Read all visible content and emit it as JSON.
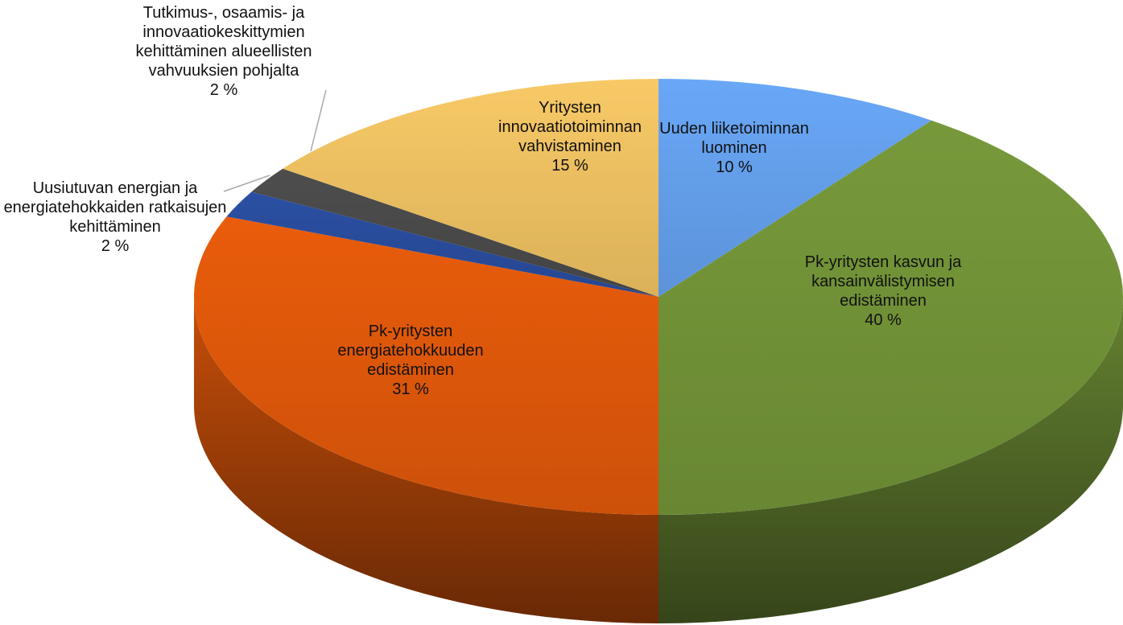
{
  "chart_data": {
    "type": "pie",
    "categories": [
      "Uuden liiketoiminnan luominen",
      "Pk-yritysten kasvun ja kansainvälistymisen edistäminen",
      "Pk-yritysten energiatehokkuuden edistäminen",
      "Uusiutuvan energian ja energiatehokkaiden ratkaisujen kehittäminen",
      "Tutkimus-, osaamis- ja innovaatiokeskittymien kehittäminen alueellisten vahvuuksien pohjalta",
      "Yritysten innovaatiotoiminnan vahvistaminen"
    ],
    "values": [
      10,
      40,
      31,
      2,
      2,
      15
    ],
    "value_labels": [
      "10 %",
      "40 %",
      "31 %",
      "2 %",
      "2 %",
      "15 %"
    ],
    "colors": [
      "#69a7f7",
      "#77993a",
      "#e95c0b",
      "#2b4fa3",
      "#4d4d4d",
      "#f8c966"
    ]
  }
}
